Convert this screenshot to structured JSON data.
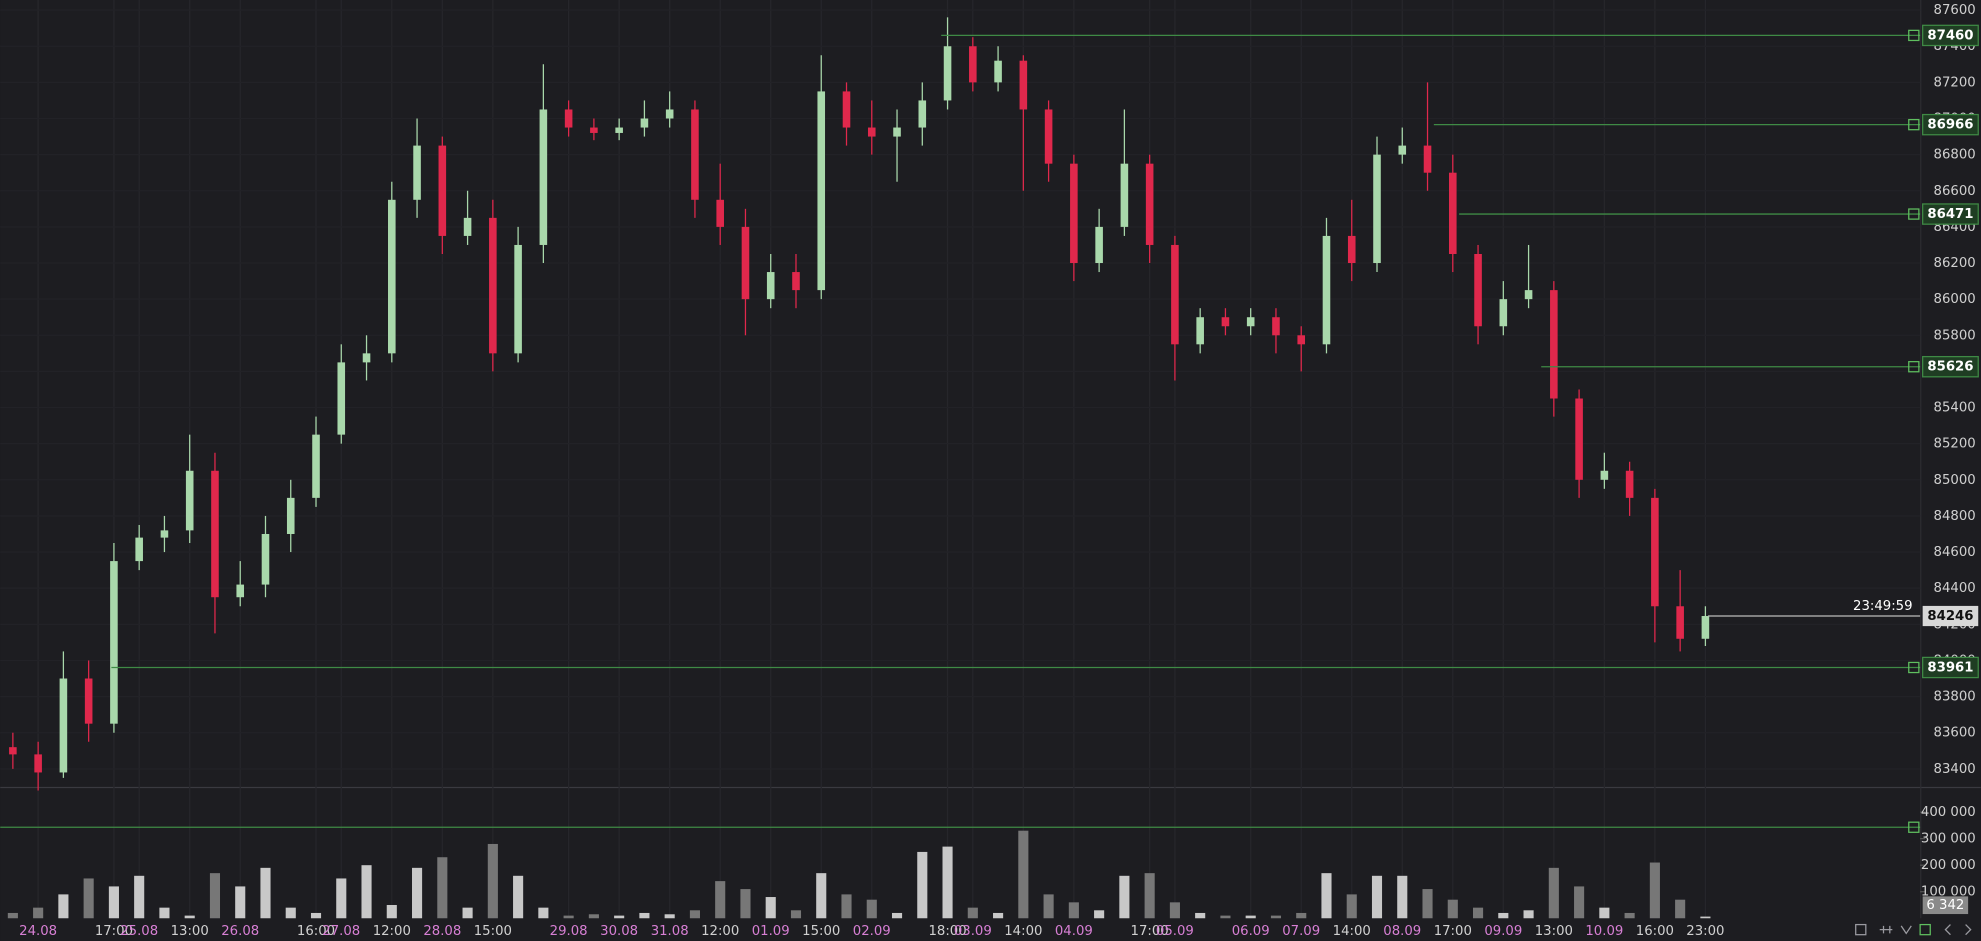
{
  "chart_data": {
    "type": "candlestick",
    "categories": [
      null,
      "24.08",
      null,
      null,
      "17:00",
      "25.08",
      null,
      "13:00",
      null,
      "26.08",
      null,
      null,
      "16:00",
      "27.08",
      null,
      "12:00",
      null,
      "28.08",
      null,
      "15:00",
      null,
      null,
      "29.08",
      null,
      "30.08",
      null,
      "31.08",
      null,
      "12:00",
      null,
      "01.09",
      null,
      "15:00",
      null,
      "02.09",
      null,
      null,
      "18:00",
      "03.09",
      null,
      "14:00",
      null,
      "04.09",
      null,
      null,
      "17:00",
      "05.09",
      null,
      null,
      "06.09",
      null,
      "07.09",
      null,
      "14:00",
      null,
      "08.09",
      null,
      "17:00",
      null,
      "09.09",
      null,
      "13:00",
      null,
      "10.09",
      null,
      "16:00",
      null,
      "23:00"
    ],
    "open": [
      83520,
      83480,
      83380,
      83900,
      83650,
      84550,
      84680,
      84720,
      85050,
      84350,
      84420,
      84700,
      84900,
      85250,
      85650,
      85700,
      86550,
      86850,
      86350,
      86450,
      85700,
      86300,
      87050,
      86950,
      86920,
      86950,
      87000,
      87050,
      86550,
      86400,
      86000,
      86150,
      86050,
      87150,
      86950,
      86900,
      86950,
      87100,
      87400,
      87200,
      87320,
      87050,
      86750,
      86200,
      86400,
      86750,
      86300,
      85750,
      85900,
      85850,
      85900,
      85800,
      85750,
      86350,
      86200,
      86800,
      86850,
      86700,
      86250,
      85850,
      86000,
      86050,
      85450,
      85000,
      85050,
      84900,
      84300,
      84120
    ],
    "high": [
      83600,
      83550,
      84050,
      84000,
      84650,
      84750,
      84800,
      85250,
      85150,
      84550,
      84800,
      85000,
      85350,
      85750,
      85800,
      86650,
      87000,
      86900,
      86600,
      86550,
      86400,
      87300,
      87100,
      87000,
      87000,
      87100,
      87150,
      87100,
      86750,
      86500,
      86250,
      86250,
      87350,
      87200,
      87100,
      87050,
      87200,
      87560,
      87450,
      87400,
      87350,
      87100,
      86800,
      86500,
      87050,
      86800,
      86350,
      85950,
      85950,
      85950,
      85950,
      85850,
      86450,
      86550,
      86900,
      86950,
      87200,
      86800,
      86300,
      86100,
      86300,
      86100,
      85500,
      85150,
      85100,
      84950,
      84500,
      84300
    ],
    "low": [
      83400,
      83280,
      83350,
      83550,
      83600,
      84500,
      84600,
      84650,
      84150,
      84300,
      84350,
      84600,
      84850,
      85200,
      85550,
      85650,
      86450,
      86250,
      86300,
      85600,
      85650,
      86200,
      86900,
      86880,
      86880,
      86900,
      86950,
      86450,
      86300,
      85800,
      85950,
      85950,
      86000,
      86850,
      86800,
      86650,
      86850,
      87050,
      87150,
      87150,
      86600,
      86650,
      86100,
      86150,
      86350,
      86200,
      85550,
      85700,
      85800,
      85800,
      85700,
      85600,
      85700,
      86100,
      86150,
      86750,
      86600,
      86150,
      85750,
      85800,
      85950,
      85350,
      84900,
      84950,
      84800,
      84100,
      84050,
      84080
    ],
    "close": [
      83480,
      83380,
      83900,
      83650,
      84550,
      84680,
      84720,
      85050,
      84350,
      84420,
      84700,
      84900,
      85250,
      85650,
      85700,
      86550,
      86850,
      86350,
      86450,
      85700,
      86300,
      87050,
      86950,
      86920,
      86950,
      87000,
      87050,
      86550,
      86400,
      86000,
      86150,
      86050,
      87150,
      86950,
      86900,
      86950,
      87100,
      87400,
      87200,
      87320,
      87050,
      86750,
      86200,
      86400,
      86750,
      86300,
      85750,
      85900,
      85850,
      85900,
      85800,
      85750,
      86350,
      86200,
      86800,
      86850,
      86700,
      86250,
      85850,
      86000,
      86050,
      85450,
      85000,
      85050,
      84900,
      84300,
      84120,
      84246
    ],
    "colors": {
      "up": "#a9d8ab",
      "down": "#e0284c"
    },
    "ylim": [
      83300,
      87656
    ],
    "yticks": [
      83400,
      83600,
      83800,
      84000,
      84200,
      84400,
      84600,
      84800,
      85000,
      85200,
      85400,
      85600,
      85800,
      86000,
      86200,
      86400,
      86600,
      86800,
      87000,
      87200,
      87400,
      87600
    ],
    "alerts": [
      87460,
      86966,
      86471,
      85626,
      83961
    ],
    "last_price": 84246,
    "countdown": "23:49:59",
    "volume": {
      "values": [
        20000,
        40000,
        90000,
        150000,
        120000,
        160000,
        40000,
        10000,
        170000,
        120000,
        190000,
        40000,
        20000,
        150000,
        200000,
        50000,
        190000,
        230000,
        40000,
        280000,
        160000,
        40000,
        10000,
        15000,
        10000,
        20000,
        15000,
        30000,
        140000,
        110000,
        80000,
        30000,
        170000,
        90000,
        70000,
        20000,
        250000,
        270000,
        40000,
        20000,
        330000,
        90000,
        60000,
        30000,
        160000,
        170000,
        60000,
        20000,
        10000,
        10000,
        10000,
        20000,
        170000,
        90000,
        160000,
        160000,
        110000,
        70000,
        40000,
        20000,
        30000,
        190000,
        120000,
        40000,
        20000,
        210000,
        70000,
        6342
      ],
      "last_label": "6 342",
      "ylim": [
        0,
        495000
      ],
      "yticks": [
        {
          "value": 100000,
          "label": "100 000"
        },
        {
          "value": 200000,
          "label": "200 000"
        },
        {
          "value": 300000,
          "label": "300 000"
        },
        {
          "value": 400000,
          "label": "400 000"
        }
      ],
      "alert": 343000
    }
  }
}
